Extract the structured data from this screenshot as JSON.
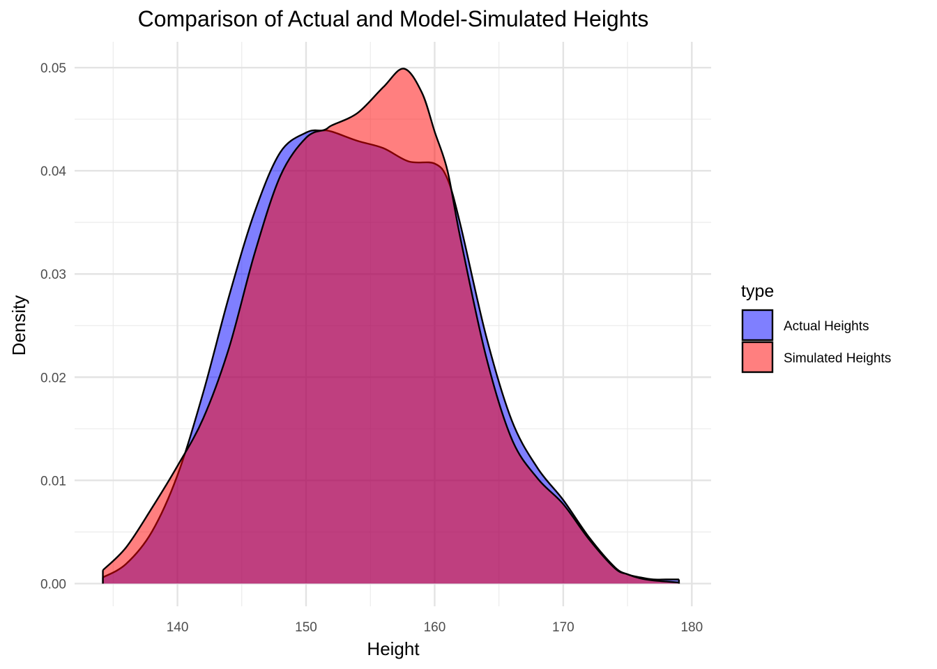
{
  "chart_data": {
    "type": "area",
    "subtype": "density",
    "title": "Comparison of Actual and Model-Simulated Heights",
    "xlabel": "Height",
    "ylabel": "Density",
    "xlim": [
      132,
      181.5
    ],
    "ylim": [
      -0.0022,
      0.0525
    ],
    "x_ticks": [
      140,
      150,
      160,
      170,
      180
    ],
    "y_ticks": [
      0.0,
      0.01,
      0.02,
      0.03,
      0.04,
      0.05
    ],
    "y_tick_labels": [
      "0.00",
      "0.01",
      "0.02",
      "0.03",
      "0.04",
      "0.05"
    ],
    "grid": true,
    "legend": {
      "title": "type",
      "position": "right"
    },
    "series": [
      {
        "name": "Actual Heights",
        "color": "#0000ff",
        "fill_opacity": 0.5,
        "x": [
          134.2,
          136,
          138,
          140,
          142,
          144,
          146,
          148,
          150,
          151.2,
          152,
          154,
          156,
          158,
          160,
          161,
          162,
          164,
          166,
          168,
          170,
          172,
          174,
          175,
          176,
          177,
          178,
          179
        ],
        "y": [
          0.0006,
          0.0019,
          0.005,
          0.0105,
          0.0185,
          0.0278,
          0.036,
          0.0418,
          0.0437,
          0.0439,
          0.0438,
          0.0429,
          0.0422,
          0.0409,
          0.0407,
          0.0392,
          0.0348,
          0.024,
          0.0158,
          0.0112,
          0.0081,
          0.0045,
          0.0016,
          0.0009,
          0.0006,
          0.0004,
          0.0004,
          0.0004
        ]
      },
      {
        "name": "Simulated Heights",
        "color": "#ff0000",
        "fill_opacity": 0.5,
        "x": [
          134.2,
          136,
          138,
          140,
          142,
          144,
          146,
          148,
          150,
          151.5,
          152,
          154,
          156,
          157.6,
          159,
          160,
          161,
          162,
          164,
          166,
          168,
          170,
          172,
          174,
          175,
          176,
          177,
          178,
          179
        ],
        "y": [
          0.0013,
          0.0035,
          0.0073,
          0.0114,
          0.016,
          0.0228,
          0.032,
          0.0395,
          0.0432,
          0.044,
          0.0444,
          0.0456,
          0.0481,
          0.0499,
          0.0476,
          0.0438,
          0.04,
          0.0335,
          0.022,
          0.014,
          0.0102,
          0.0077,
          0.0043,
          0.0015,
          0.0009,
          0.0005,
          0.0003,
          0.0002,
          0.0001
        ]
      }
    ]
  }
}
